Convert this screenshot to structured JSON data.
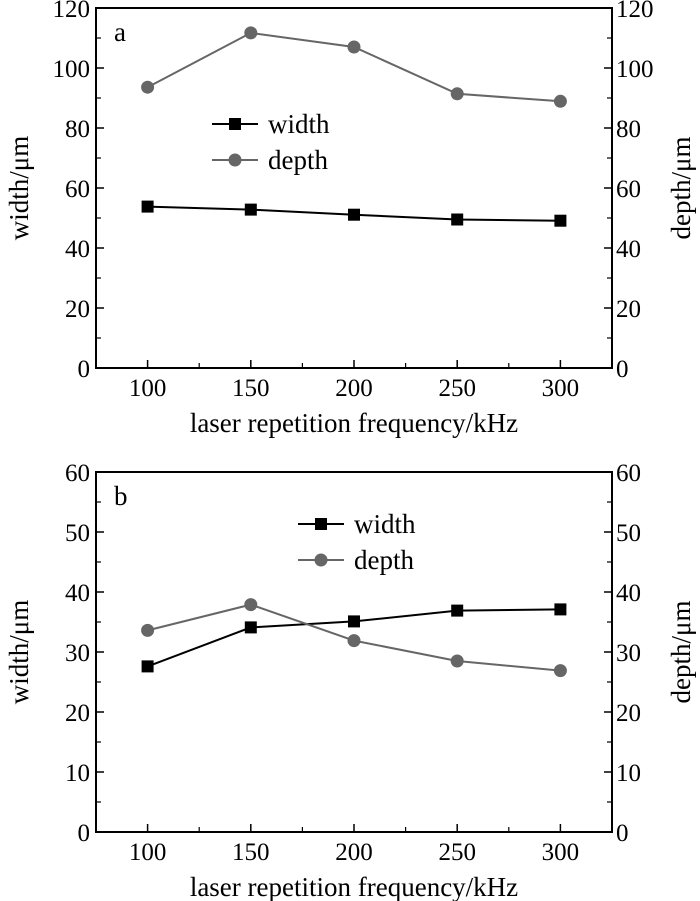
{
  "chart_data": [
    {
      "type": "line",
      "panel_label": "a",
      "xlabel": "laser repetition frequency/kHz",
      "ylabel": "width/μm",
      "y2label": "depth/μm",
      "xlim": [
        75,
        325
      ],
      "ylim": [
        0,
        120
      ],
      "y2lim": [
        0,
        120
      ],
      "xticks": [
        100,
        150,
        200,
        250,
        300
      ],
      "yticks": [
        0,
        20,
        40,
        60,
        80,
        100,
        120
      ],
      "x": [
        100,
        150,
        200,
        250,
        300
      ],
      "legend_position": "center-left",
      "grid": false,
      "series": [
        {
          "name": "width",
          "axis": "left",
          "marker": "square",
          "color": "#000000",
          "values": [
            53.8,
            52.8,
            51.1,
            49.5,
            49.1
          ]
        },
        {
          "name": "depth",
          "axis": "right",
          "marker": "circle",
          "color": "#666666",
          "values": [
            93.6,
            111.7,
            107.0,
            91.4,
            88.9
          ]
        }
      ]
    },
    {
      "type": "line",
      "panel_label": "b",
      "xlabel": "laser repetition frequency/kHz",
      "ylabel": "width/μm",
      "y2label": "depth/μm",
      "xlim": [
        75,
        325
      ],
      "ylim": [
        0,
        60
      ],
      "y2lim": [
        0,
        60
      ],
      "xticks": [
        100,
        150,
        200,
        250,
        300
      ],
      "yticks": [
        0,
        10,
        20,
        30,
        40,
        50,
        60
      ],
      "x": [
        100,
        150,
        200,
        250,
        300
      ],
      "legend_position": "top-center",
      "grid": false,
      "series": [
        {
          "name": "width",
          "axis": "left",
          "marker": "square",
          "color": "#000000",
          "values": [
            27.6,
            34.1,
            35.1,
            36.9,
            37.1
          ]
        },
        {
          "name": "depth",
          "axis": "right",
          "marker": "circle",
          "color": "#666666",
          "values": [
            33.6,
            37.9,
            31.9,
            28.5,
            26.9
          ]
        }
      ]
    }
  ]
}
